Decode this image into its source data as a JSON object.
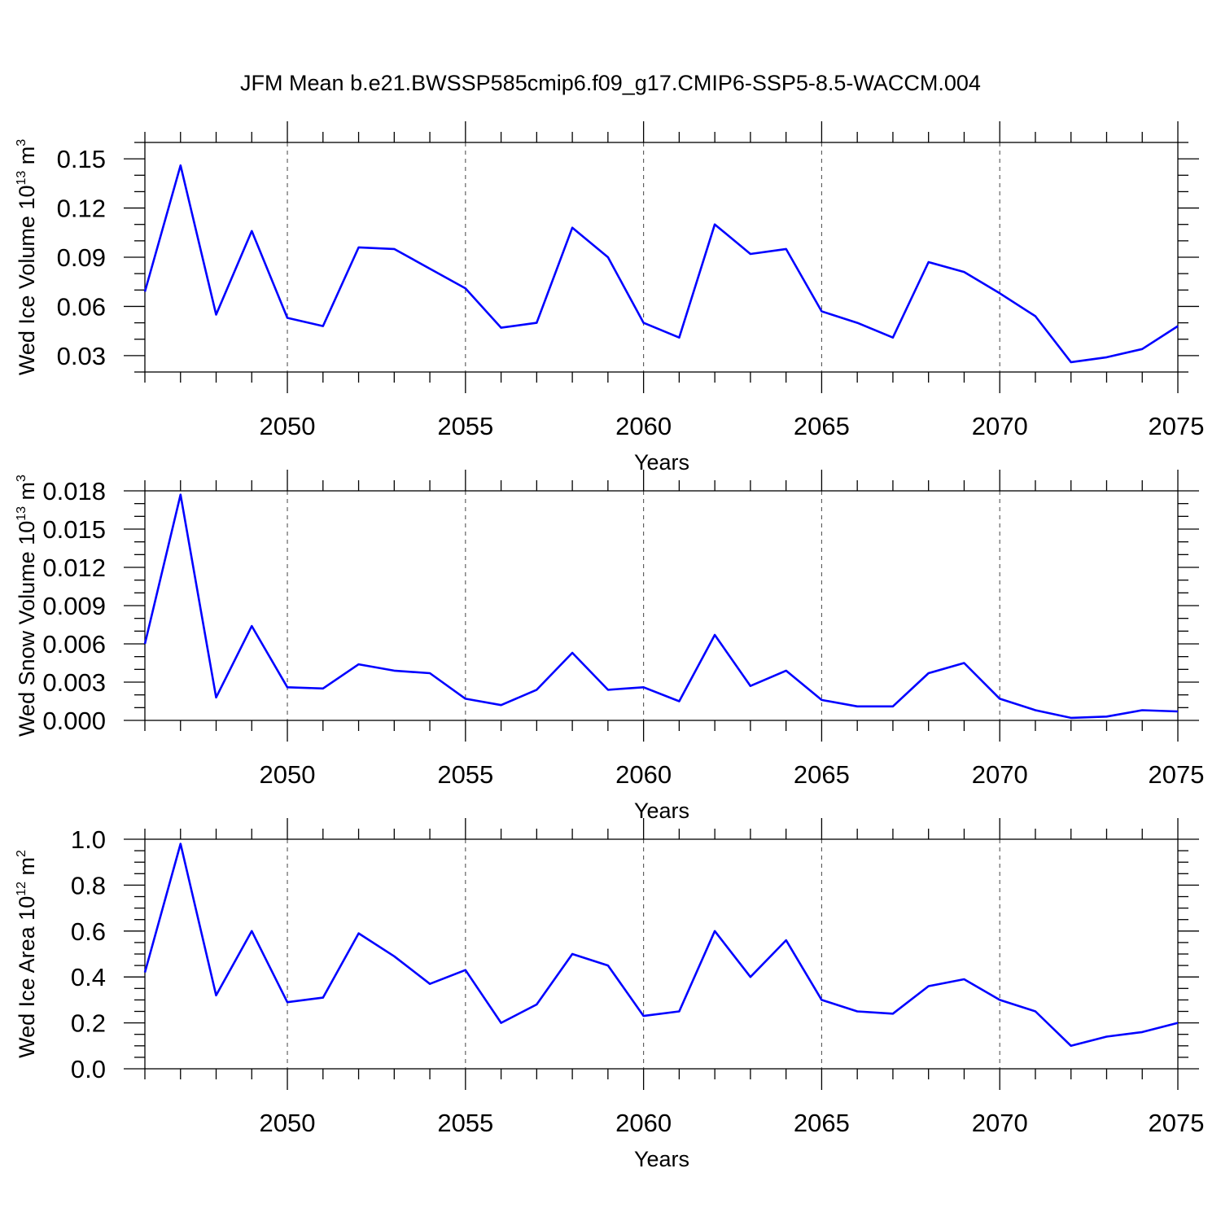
{
  "title": "JFM Mean b.e21.BWSSP585cmip6.f09_g17.CMIP6-SSP5-8.5-WACCM.004",
  "colors": {
    "line": "#0000ff",
    "axis": "#000000",
    "grid": "#555555"
  },
  "chart_data": [
    {
      "type": "line",
      "ylabel": {
        "text": "Wed Ice Volume 10",
        "exp": "13",
        "unit": " m",
        "unit_exp": "3"
      },
      "xlabel": "Years",
      "xlim": [
        2046,
        2075
      ],
      "ylim": [
        0.02,
        0.16
      ],
      "xticks": [
        2050,
        2055,
        2060,
        2065,
        2070,
        2075
      ],
      "yticks": [
        0.03,
        0.06,
        0.09,
        0.12,
        0.15
      ],
      "ytick_labels": [
        "0.03",
        "0.06",
        "0.09",
        "0.12",
        "0.15"
      ],
      "yminor_step": 0.01,
      "x": [
        2046,
        2047,
        2048,
        2049,
        2050,
        2051,
        2052,
        2053,
        2054,
        2055,
        2056,
        2057,
        2058,
        2059,
        2060,
        2061,
        2062,
        2063,
        2064,
        2065,
        2066,
        2067,
        2068,
        2069,
        2070,
        2071,
        2072,
        2073,
        2074,
        2075
      ],
      "values": [
        0.069,
        0.146,
        0.055,
        0.106,
        0.053,
        0.048,
        0.096,
        0.095,
        0.083,
        0.071,
        0.047,
        0.05,
        0.108,
        0.09,
        0.05,
        0.041,
        0.11,
        0.092,
        0.095,
        0.057,
        0.05,
        0.041,
        0.087,
        0.081,
        0.068,
        0.054,
        0.026,
        0.029,
        0.034,
        0.048
      ]
    },
    {
      "type": "line",
      "ylabel": {
        "text": "Wed Snow Volume 10",
        "exp": "13",
        "unit": " m",
        "unit_exp": "3"
      },
      "xlabel": "Years",
      "xlim": [
        2046,
        2075
      ],
      "ylim": [
        0.0,
        0.018
      ],
      "xticks": [
        2050,
        2055,
        2060,
        2065,
        2070,
        2075
      ],
      "yticks": [
        0.0,
        0.003,
        0.006,
        0.009,
        0.012,
        0.015,
        0.018
      ],
      "ytick_labels": [
        "0.000",
        "0.003",
        "0.006",
        "0.009",
        "0.012",
        "0.015",
        "0.018"
      ],
      "yminor_step": 0.001,
      "x": [
        2046,
        2047,
        2048,
        2049,
        2050,
        2051,
        2052,
        2053,
        2054,
        2055,
        2056,
        2057,
        2058,
        2059,
        2060,
        2061,
        2062,
        2063,
        2064,
        2065,
        2066,
        2067,
        2068,
        2069,
        2070,
        2071,
        2072,
        2073,
        2074,
        2075
      ],
      "values": [
        0.006,
        0.0177,
        0.0018,
        0.0074,
        0.0026,
        0.0025,
        0.0044,
        0.0039,
        0.0037,
        0.0017,
        0.0012,
        0.0024,
        0.0053,
        0.0024,
        0.0026,
        0.0015,
        0.0067,
        0.0027,
        0.0039,
        0.0016,
        0.0011,
        0.0011,
        0.0037,
        0.0045,
        0.0017,
        0.0008,
        0.0002,
        0.0003,
        0.0008,
        0.0007
      ]
    },
    {
      "type": "line",
      "ylabel": {
        "text": "Wed Ice Area 10",
        "exp": "12",
        "unit": " m",
        "unit_exp": "2"
      },
      "xlabel": "Years",
      "xlim": [
        2046,
        2075
      ],
      "ylim": [
        0.0,
        1.0
      ],
      "xticks": [
        2050,
        2055,
        2060,
        2065,
        2070,
        2075
      ],
      "yticks": [
        0.0,
        0.2,
        0.4,
        0.6,
        0.8,
        1.0
      ],
      "ytick_labels": [
        "0.0",
        "0.2",
        "0.4",
        "0.6",
        "0.8",
        "1.0"
      ],
      "yminor_step": 0.05,
      "x": [
        2046,
        2047,
        2048,
        2049,
        2050,
        2051,
        2052,
        2053,
        2054,
        2055,
        2056,
        2057,
        2058,
        2059,
        2060,
        2061,
        2062,
        2063,
        2064,
        2065,
        2066,
        2067,
        2068,
        2069,
        2070,
        2071,
        2072,
        2073,
        2074,
        2075
      ],
      "values": [
        0.42,
        0.98,
        0.32,
        0.6,
        0.29,
        0.31,
        0.59,
        0.49,
        0.37,
        0.43,
        0.2,
        0.28,
        0.5,
        0.45,
        0.23,
        0.25,
        0.6,
        0.4,
        0.56,
        0.3,
        0.25,
        0.24,
        0.36,
        0.39,
        0.3,
        0.25,
        0.1,
        0.14,
        0.16,
        0.2
      ]
    }
  ]
}
